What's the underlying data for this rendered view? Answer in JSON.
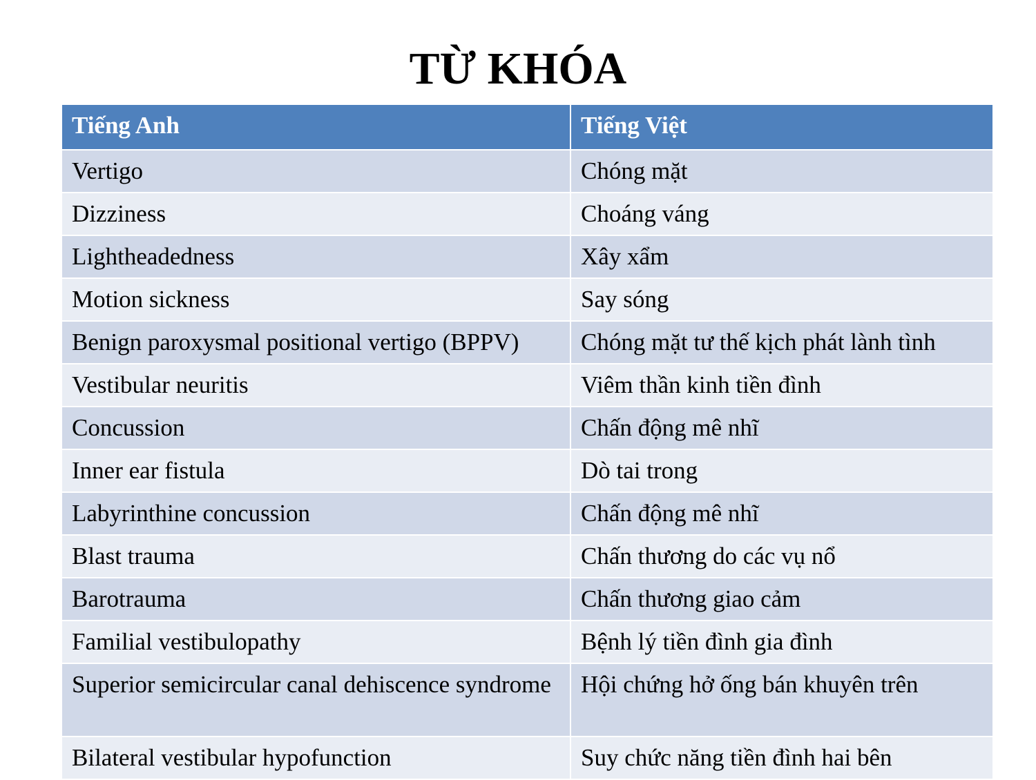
{
  "title": "TỪ KHÓA",
  "table": {
    "headers": [
      "Tiếng Anh",
      "Tiếng Việt"
    ],
    "rows": [
      [
        "Vertigo",
        "Chóng mặt"
      ],
      [
        "Dizziness",
        "Choáng váng"
      ],
      [
        "Lightheadedness",
        "Xây xẩm"
      ],
      [
        "Motion sickness",
        "Say sóng"
      ],
      [
        "Benign paroxysmal positional vertigo (BPPV)",
        "Chóng mặt tư thế kịch phát lành tình"
      ],
      [
        "Vestibular neuritis",
        "Viêm thần kinh tiền đình"
      ],
      [
        "Concussion",
        "Chấn động mê nhĩ"
      ],
      [
        "Inner ear fistula",
        "Dò tai trong"
      ],
      [
        "Labyrinthine concussion",
        "Chấn động mê nhĩ"
      ],
      [
        "Blast trauma",
        "Chấn thương do các vụ nổ"
      ],
      [
        "Barotrauma",
        "Chấn thương giao cảm"
      ],
      [
        "Familial vestibulopathy",
        "Bệnh lý tiền đình gia đình"
      ],
      [
        "Superior semicircular canal dehiscence syndrome",
        "Hội chứng hở ống bán khuyên trên"
      ],
      [
        "Bilateral vestibular hypofunction",
        "Suy chức năng tiền đình hai bên"
      ]
    ]
  },
  "colors": {
    "header_bg": "#4f81bd",
    "row_dark": "#d0d8e8",
    "row_light": "#e9edf4"
  }
}
